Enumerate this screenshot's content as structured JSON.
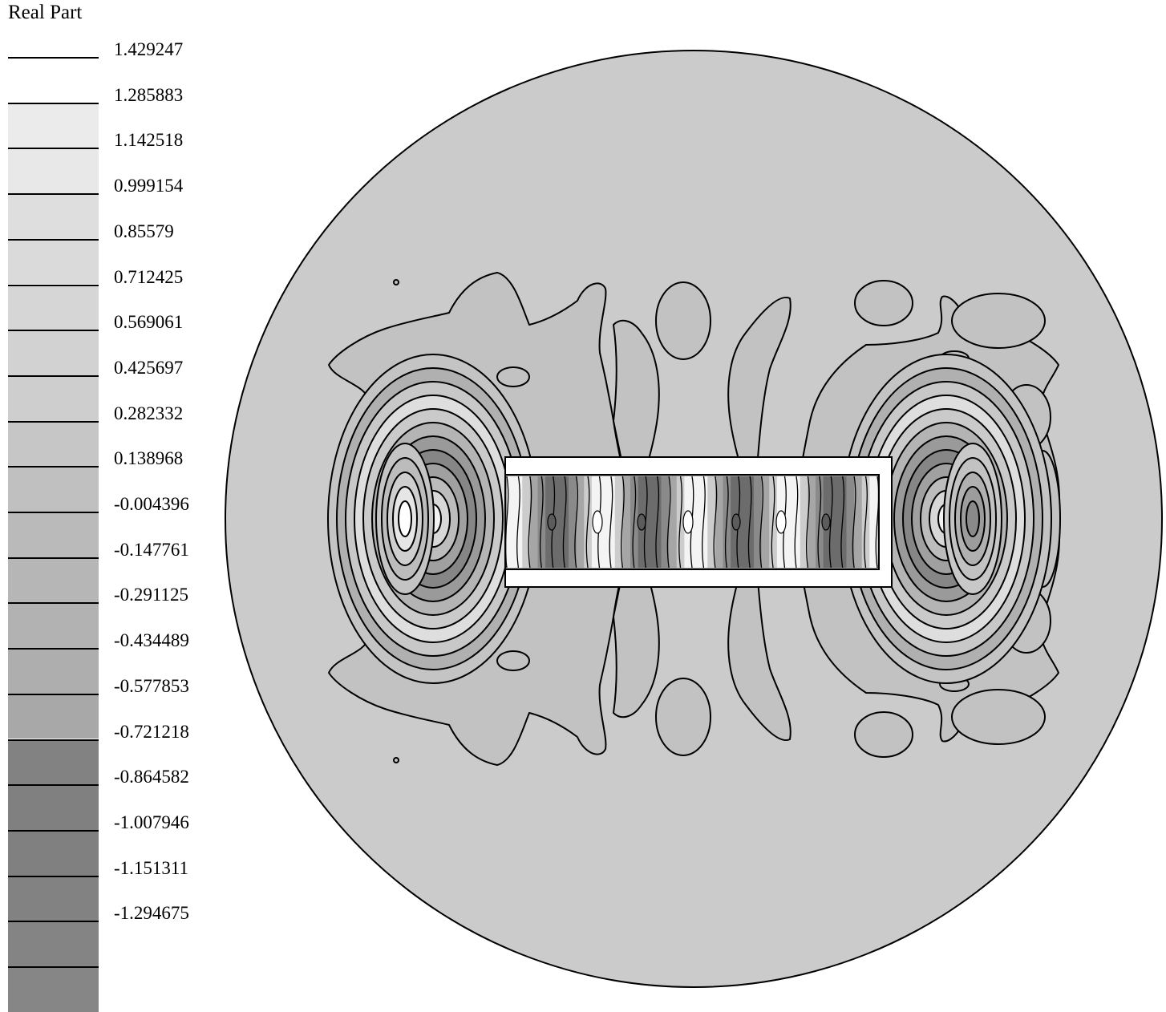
{
  "legend": {
    "title": "Real Part",
    "levels": [
      "1.429247",
      "1.285883",
      "1.142518",
      "0.999154",
      "0.85579",
      "0.712425",
      "0.569061",
      "0.425697",
      "0.282332",
      "0.138968",
      "-0.004396",
      "-0.147761",
      "-0.291125",
      "-0.434489",
      "-0.577853",
      "-0.721218",
      "-0.864582",
      "-1.007946",
      "-1.151311",
      "-1.294675"
    ],
    "band_colors": [
      "#ffffff",
      "#ebebeb",
      "#e8e8e8",
      "#dedede",
      "#dadada",
      "#d6d6d6",
      "#d2d2d2",
      "#cecece",
      "#c6c6c6",
      "#c0c0c0",
      "#bababa",
      "#b6b6b6",
      "#b2b2b2",
      "#aeaeae",
      "#a8a8a8",
      "#828282",
      "#808080",
      "#808080",
      "#828282",
      "#848484",
      "#868686"
    ]
  },
  "plot": {
    "background_fill": "#cbcbcb",
    "field_fill": "#c2c2c2",
    "contour_color": "#000000",
    "obstacle_fill": "#ffffff"
  }
}
